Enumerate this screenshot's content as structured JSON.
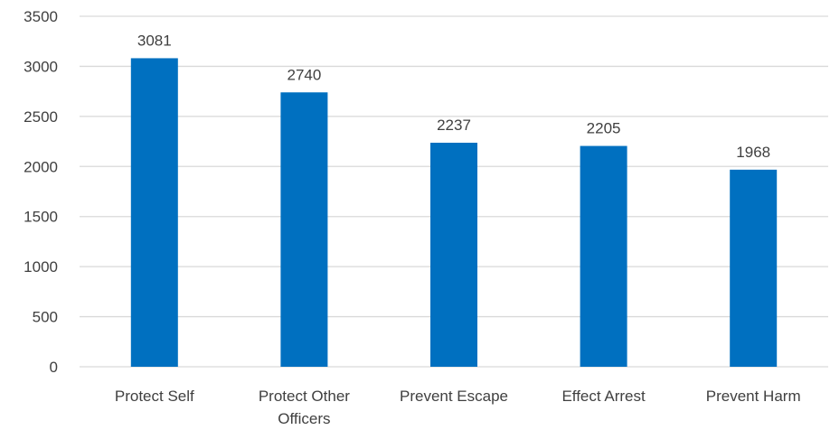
{
  "chart_data": {
    "type": "bar",
    "categories": [
      "Protect Self",
      "Protect Other Officers",
      "Prevent Escape",
      "Effect Arrest",
      "Prevent Harm"
    ],
    "category_lines": [
      [
        "Protect Self"
      ],
      [
        "Protect Other",
        "Officers"
      ],
      [
        "Prevent Escape"
      ],
      [
        "Effect Arrest"
      ],
      [
        "Prevent Harm"
      ]
    ],
    "values": [
      3081,
      2740,
      2237,
      2205,
      1968
    ],
    "ylim": [
      0,
      3500
    ],
    "yticks": [
      0,
      500,
      1000,
      1500,
      2000,
      2500,
      3000,
      3500
    ],
    "grid": true,
    "legend": "none",
    "bar_color": "#0070C0",
    "data_labels": true,
    "title": "",
    "xlabel": "",
    "ylabel": ""
  }
}
